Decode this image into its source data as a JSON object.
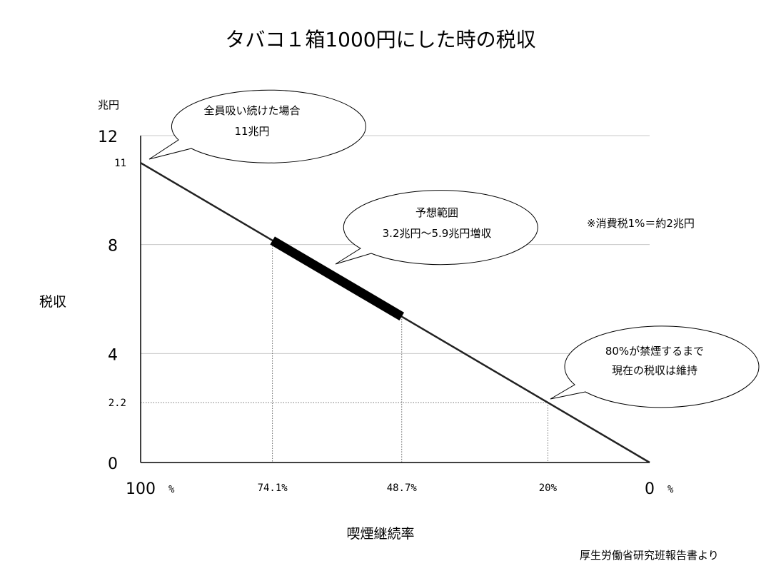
{
  "chart_data": {
    "type": "line",
    "title": "タバコ１箱1000円にした時の税収",
    "ylabel": "税収",
    "y_unit": "兆円",
    "xlabel": "喫煙継続率",
    "xlim": [
      100,
      0
    ],
    "ylim": [
      0,
      12
    ],
    "x_ticks": [
      {
        "value": 100,
        "label": "100"
      },
      {
        "value": 74.1,
        "label": "74.1%"
      },
      {
        "value": 48.7,
        "label": "48.7%"
      },
      {
        "value": 20,
        "label": "20%"
      },
      {
        "value": 0,
        "label": "0"
      }
    ],
    "x_percent_sign": "%",
    "y_ticks_major": [
      0,
      4,
      8,
      12
    ],
    "y_ticks_minor": [
      {
        "value": 11,
        "label": "11"
      },
      {
        "value": 2.2,
        "label": "2.2"
      }
    ],
    "grid": true,
    "series": [
      {
        "x": [
          100,
          0
        ],
        "y": [
          11,
          0
        ],
        "color": "#222222"
      }
    ],
    "highlight_range": {
      "x": [
        74.1,
        48.7
      ],
      "y": [
        8.15,
        5.36
      ],
      "color": "#000000"
    },
    "reference_lines": [
      {
        "x": 74.1,
        "y": 8.15
      },
      {
        "x": 48.7,
        "y": 5.36
      },
      {
        "x": 20,
        "y": 2.2
      }
    ],
    "annotations": {
      "full_smoking": {
        "lines": [
          "全員吸い続けた場合",
          "11兆円"
        ]
      },
      "expected_range": {
        "lines": [
          "予想範囲",
          "3.2兆円〜5.9兆円増収"
        ]
      },
      "maintain": {
        "lines": [
          "80%が禁煙するまで",
          "現在の税収は維持"
        ]
      },
      "tax_note": "※消費税1%＝約2兆円",
      "source": "厚生労働省研究班報告書より"
    }
  }
}
